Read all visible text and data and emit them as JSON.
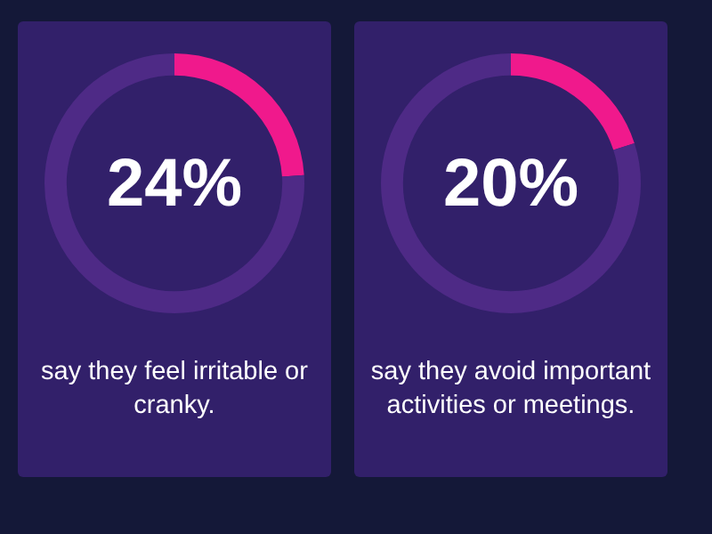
{
  "chart_data": [
    {
      "type": "donut",
      "title": "24%",
      "categories": [
        null,
        null
      ],
      "values": [
        24,
        76
      ],
      "colors": [
        "#f0198c",
        "#4e2a86"
      ],
      "annotations": [
        "say they feel irritable or cranky."
      ]
    },
    {
      "type": "donut",
      "title": "20%",
      "categories": [
        null,
        null
      ],
      "values": [
        20,
        80
      ],
      "colors": [
        "#f0198c",
        "#4e2a86"
      ],
      "annotations": [
        "say they avoid important activities or meetings."
      ]
    }
  ]
}
